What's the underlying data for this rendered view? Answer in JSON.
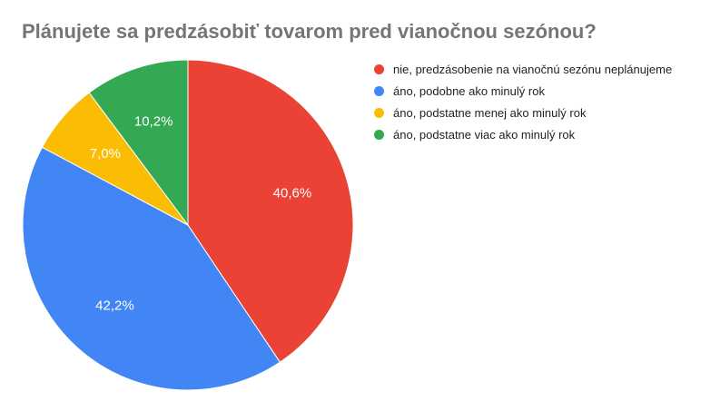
{
  "chart_data": {
    "type": "pie",
    "title": "Plánujete sa predzásobiť tovarom pred vianočnou sezónou?",
    "categories": [
      "nie, predzásobenie na vianočnú sezónu neplánujeme",
      "áno, podobne ako minulý rok",
      "áno, podstatne menej ako minulý rok",
      "áno, podstatne viac ako minulý rok"
    ],
    "values": [
      40.6,
      42.2,
      7.0,
      10.2
    ],
    "value_labels": [
      "40,6%",
      "42,2%",
      "7,0%",
      "10,2%"
    ],
    "colors": [
      "#EA4335",
      "#4285F4",
      "#FBBC04",
      "#34A853"
    ],
    "legend_position": "right"
  }
}
